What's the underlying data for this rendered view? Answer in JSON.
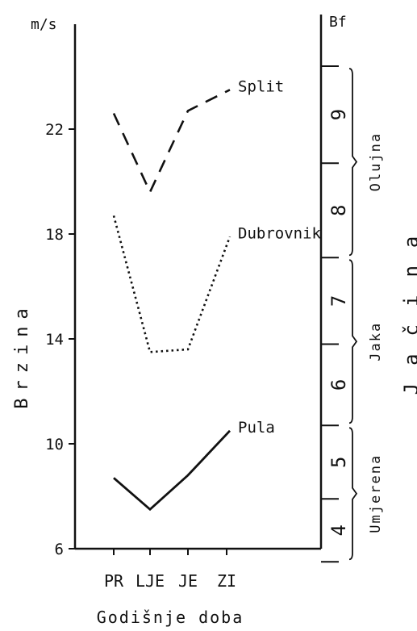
{
  "chart_data": {
    "type": "line",
    "title": "",
    "xlabel": "Godišnje doba",
    "ylabel": "Brzina",
    "y_unit": "m/s",
    "categories": [
      "PR",
      "LJE",
      "JE",
      "ZI"
    ],
    "ylim": [
      6,
      26
    ],
    "yticks": [
      "6",
      "10",
      "14",
      "18",
      "22"
    ],
    "series": [
      {
        "name": "Split",
        "style": "dashed",
        "values": [
          22.6,
          19.6,
          22.7,
          23.5
        ]
      },
      {
        "name": "Dubrovnik",
        "style": "dotted",
        "values": [
          18.7,
          13.5,
          13.6,
          17.9
        ]
      },
      {
        "name": "Pula",
        "style": "solid",
        "values": [
          8.7,
          7.5,
          8.8,
          10.5
        ]
      }
    ],
    "right_axis": {
      "unit": "Bf",
      "label": "Jačina",
      "levels": [
        {
          "label": "4",
          "from": 5.5,
          "to": 7.9
        },
        {
          "label": "5",
          "from": 7.9,
          "to": 10.7
        },
        {
          "label": "6",
          "from": 10.7,
          "to": 13.8
        },
        {
          "label": "7",
          "from": 13.8,
          "to": 17.1
        },
        {
          "label": "8",
          "from": 17.1,
          "to": 20.7
        },
        {
          "label": "9",
          "from": 20.7,
          "to": 24.4
        }
      ],
      "classes": [
        {
          "label": "Umjerena",
          "from": 5.5,
          "to": 10.7
        },
        {
          "label": "Jaka",
          "from": 10.7,
          "to": 17.1
        },
        {
          "label": "Olujna",
          "from": 17.1,
          "to": 24.4
        }
      ]
    },
    "grid": false,
    "legend": "none"
  }
}
